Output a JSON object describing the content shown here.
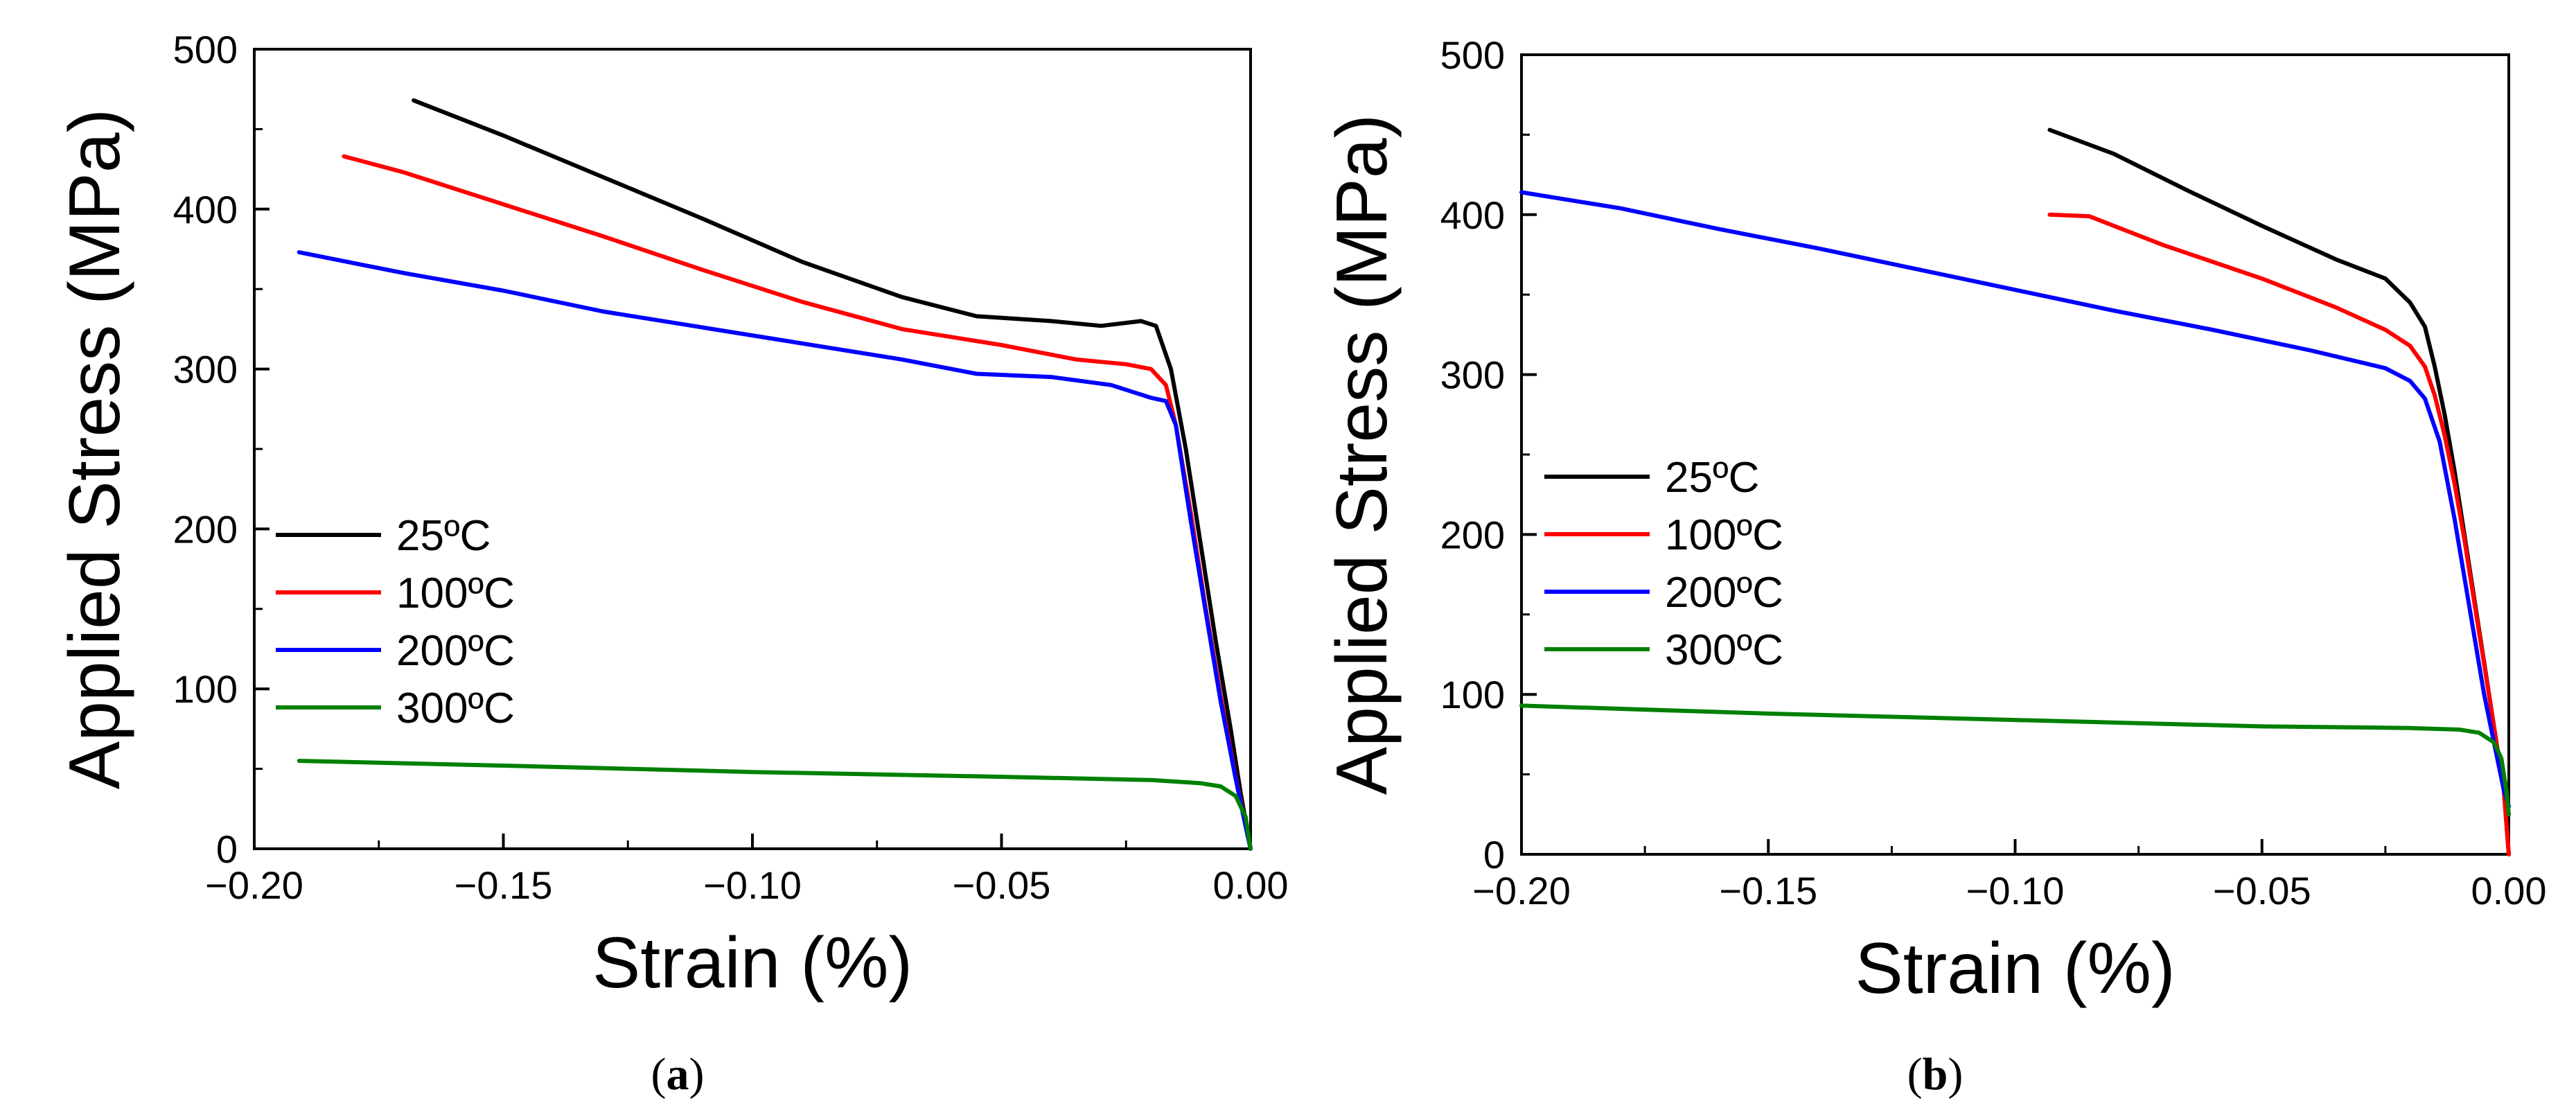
{
  "chart_data": [
    {
      "type": "line",
      "panel": "a",
      "caption_letter": "a",
      "xlabel": "Strain (%)",
      "ylabel": "Applied Stress (MPa)",
      "xlim": [
        -0.2,
        0.0
      ],
      "ylim": [
        0,
        500
      ],
      "x_ticks": [
        -0.2,
        -0.15,
        -0.1,
        -0.05,
        0.0
      ],
      "x_tick_labels": [
        "−0.20",
        "−0.15",
        "−0.10",
        "−0.05",
        "0.00"
      ],
      "y_ticks": [
        0,
        100,
        200,
        300,
        400,
        500
      ],
      "y_tick_labels": [
        "0",
        "100",
        "200",
        "300",
        "400",
        "500"
      ],
      "grid": false,
      "legend_position": "middle-left",
      "series": [
        {
          "name": "25ºC",
          "color": "#000000",
          "x": [
            -0.168,
            -0.15,
            -0.13,
            -0.11,
            -0.09,
            -0.07,
            -0.055,
            -0.04,
            -0.03,
            -0.022,
            -0.019,
            -0.016,
            -0.013,
            -0.01,
            -0.007,
            -0.004,
            -0.002,
            0.0
          ],
          "y": [
            468,
            446,
            420,
            394,
            367,
            345,
            333,
            330,
            327,
            330,
            327,
            300,
            250,
            190,
            130,
            75,
            35,
            0
          ]
        },
        {
          "name": "100ºC",
          "color": "#ff0000",
          "x": [
            -0.182,
            -0.17,
            -0.15,
            -0.13,
            -0.11,
            -0.09,
            -0.07,
            -0.05,
            -0.035,
            -0.025,
            -0.02,
            -0.017,
            -0.015,
            -0.012,
            -0.009,
            -0.006,
            -0.003,
            -0.001,
            0.0
          ],
          "y": [
            433,
            423,
            403,
            383,
            362,
            342,
            325,
            315,
            306,
            303,
            300,
            290,
            265,
            210,
            150,
            95,
            45,
            15,
            0
          ]
        },
        {
          "name": "200ºC",
          "color": "#0000ff",
          "x": [
            -0.191,
            -0.17,
            -0.15,
            -0.13,
            -0.11,
            -0.09,
            -0.07,
            -0.055,
            -0.04,
            -0.028,
            -0.02,
            -0.017,
            -0.015,
            -0.012,
            -0.009,
            -0.006,
            -0.003,
            -0.001,
            0.0
          ],
          "y": [
            373,
            360,
            349,
            336,
            326,
            316,
            306,
            297,
            295,
            290,
            282,
            280,
            265,
            205,
            148,
            92,
            44,
            14,
            0
          ]
        },
        {
          "name": "300ºC",
          "color": "#008000",
          "x": [
            -0.191,
            -0.15,
            -0.1,
            -0.05,
            -0.02,
            -0.01,
            -0.006,
            -0.003,
            -0.001,
            0.0
          ],
          "y": [
            55,
            52,
            48,
            45,
            43,
            41,
            39,
            33,
            20,
            0
          ]
        }
      ]
    },
    {
      "type": "line",
      "panel": "b",
      "caption_letter": "b",
      "xlabel": "Strain (%)",
      "ylabel": "Applied Stress (MPa)",
      "xlim": [
        -0.2,
        0.0
      ],
      "ylim": [
        0,
        500
      ],
      "x_ticks": [
        -0.2,
        -0.15,
        -0.1,
        -0.05,
        0.0
      ],
      "x_tick_labels": [
        "−0.20",
        "−0.15",
        "−0.10",
        "−0.05",
        "0.00"
      ],
      "y_ticks": [
        0,
        100,
        200,
        300,
        400,
        500
      ],
      "y_tick_labels": [
        "0",
        "100",
        "200",
        "300",
        "400",
        "500"
      ],
      "grid": false,
      "legend_position": "middle-left",
      "series": [
        {
          "name": "25ºC",
          "color": "#000000",
          "x": [
            -0.093,
            -0.08,
            -0.065,
            -0.05,
            -0.035,
            -0.025,
            -0.02,
            -0.017,
            -0.015,
            -0.013,
            -0.011,
            -0.009,
            -0.007,
            -0.005,
            -0.003,
            -0.001,
            0.0
          ],
          "y": [
            453,
            438,
            415,
            393,
            372,
            360,
            345,
            330,
            305,
            275,
            240,
            200,
            160,
            120,
            80,
            40,
            0
          ]
        },
        {
          "name": "100ºC",
          "color": "#ff0000",
          "x": [
            -0.093,
            -0.085,
            -0.07,
            -0.05,
            -0.035,
            -0.025,
            -0.02,
            -0.017,
            -0.015,
            -0.013,
            -0.011,
            -0.009,
            -0.007,
            -0.005,
            -0.003,
            -0.001,
            0.0
          ],
          "y": [
            400,
            399,
            381,
            360,
            342,
            328,
            318,
            305,
            287,
            262,
            232,
            197,
            158,
            119,
            80,
            40,
            0
          ]
        },
        {
          "name": "200ºC",
          "color": "#0000ff",
          "x": [
            -0.2,
            -0.18,
            -0.16,
            -0.14,
            -0.12,
            -0.1,
            -0.08,
            -0.06,
            -0.04,
            -0.025,
            -0.02,
            -0.017,
            -0.014,
            -0.011,
            -0.008,
            -0.005,
            -0.003,
            -0.001,
            0.0
          ],
          "y": [
            414,
            404,
            391,
            379,
            366,
            353,
            340,
            328,
            315,
            304,
            296,
            285,
            258,
            210,
            155,
            100,
            70,
            40,
            30
          ]
        },
        {
          "name": "300ºC",
          "color": "#008000",
          "x": [
            -0.2,
            -0.15,
            -0.1,
            -0.05,
            -0.02,
            -0.01,
            -0.006,
            -0.003,
            -0.0015,
            -0.0005,
            0.0
          ],
          "y": [
            93,
            88,
            84,
            80,
            79,
            78,
            76,
            70,
            60,
            40,
            25
          ]
        }
      ]
    }
  ]
}
